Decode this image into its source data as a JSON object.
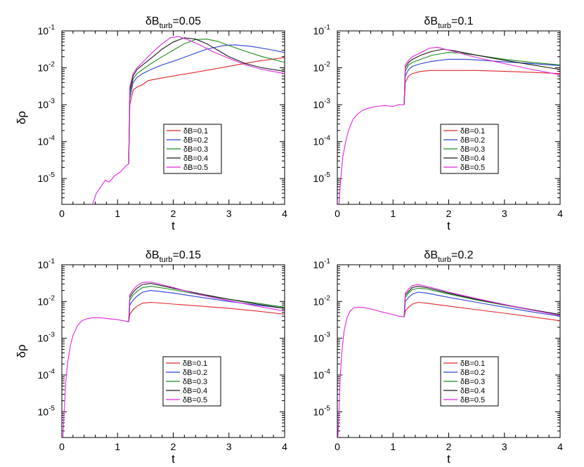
{
  "colors": {
    "dB_0.1": "#e0262b",
    "dB_0.2": "#2a3fd6",
    "dB_0.3": "#1f8a1f",
    "dB_0.4": "#1a1a1a",
    "dB_0.5": "#e026e0"
  },
  "chart_data": [
    {
      "type": "line",
      "title": "δB_turb=0.05",
      "title_main": "δB",
      "title_sub": "turb",
      "title_value": "=0.05",
      "xlabel": "t",
      "ylabel": "δρ",
      "xlim": [
        0,
        4
      ],
      "ylim_log10": [
        -5.7,
        -1
      ],
      "yscale": "log",
      "x_ticks": [
        "0",
        "1",
        "2",
        "3",
        "4"
      ],
      "y_ticks": [
        {
          "base": "10",
          "exp": "-1"
        },
        {
          "base": "10",
          "exp": "-2"
        },
        {
          "base": "10",
          "exp": "-3"
        },
        {
          "base": "10",
          "exp": "-4"
        },
        {
          "base": "10",
          "exp": "-5"
        }
      ],
      "legend": [
        "δB=0.1",
        "δB=0.2",
        "δB=0.3",
        "δB=0.4",
        "δB=0.5"
      ],
      "common": {
        "x": [
          0.55,
          0.62,
          0.7,
          0.78,
          0.85,
          0.95,
          1.05,
          1.15,
          1.2
        ],
        "y": [
          2e-06,
          4e-06,
          6e-06,
          9e-06,
          8e-06,
          1.2e-05,
          1.5e-05,
          2.2e-05,
          2.5e-05
        ]
      },
      "series": [
        {
          "name": "δB=0.1",
          "x": [
            1.2,
            1.22,
            1.28,
            1.35,
            1.45,
            1.55,
            1.7,
            2.0,
            2.5,
            3.0,
            3.5,
            4.0
          ],
          "y": [
            2.5e-05,
            0.001,
            0.0025,
            0.003,
            0.0035,
            0.0045,
            0.005,
            0.006,
            0.008,
            0.011,
            0.015,
            0.019
          ]
        },
        {
          "name": "δB=0.2",
          "x": [
            1.2,
            1.22,
            1.28,
            1.35,
            1.45,
            1.6,
            1.8,
            2.0,
            2.3,
            2.6,
            2.9,
            3.1,
            3.4,
            3.7,
            4.0
          ],
          "y": [
            2.5e-05,
            0.0015,
            0.004,
            0.0055,
            0.007,
            0.009,
            0.012,
            0.015,
            0.022,
            0.032,
            0.04,
            0.042,
            0.038,
            0.032,
            0.026
          ]
        },
        {
          "name": "δB=0.3",
          "x": [
            1.2,
            1.22,
            1.28,
            1.35,
            1.45,
            1.6,
            1.8,
            2.0,
            2.2,
            2.4,
            2.6,
            2.8,
            3.0,
            3.3,
            3.6,
            4.0
          ],
          "y": [
            2.5e-05,
            0.002,
            0.005,
            0.007,
            0.009,
            0.013,
            0.02,
            0.03,
            0.045,
            0.058,
            0.06,
            0.052,
            0.04,
            0.028,
            0.02,
            0.014
          ]
        },
        {
          "name": "δB=0.4",
          "x": [
            1.2,
            1.22,
            1.28,
            1.35,
            1.45,
            1.6,
            1.8,
            2.0,
            2.2,
            2.4,
            2.6,
            2.8,
            3.0,
            3.3,
            3.6,
            4.0
          ],
          "y": [
            2.5e-05,
            0.0025,
            0.006,
            0.009,
            0.012,
            0.018,
            0.032,
            0.05,
            0.065,
            0.06,
            0.045,
            0.03,
            0.02,
            0.013,
            0.01,
            0.008
          ]
        },
        {
          "name": "δB=0.5",
          "x": [
            1.2,
            1.22,
            1.28,
            1.35,
            1.45,
            1.6,
            1.8,
            1.95,
            2.1,
            2.3,
            2.5,
            2.7,
            3.0,
            3.3,
            3.6,
            4.0
          ],
          "y": [
            2.5e-05,
            0.003,
            0.007,
            0.01,
            0.014,
            0.024,
            0.045,
            0.065,
            0.07,
            0.055,
            0.04,
            0.028,
            0.018,
            0.012,
            0.009,
            0.007
          ]
        }
      ]
    },
    {
      "type": "line",
      "title": "δB_turb=0.1",
      "title_main": "δB",
      "title_sub": "turb",
      "title_value": "=0.1",
      "xlabel": "t",
      "ylabel": "",
      "xlim": [
        0,
        4
      ],
      "ylim_log10": [
        -5.7,
        -1
      ],
      "yscale": "log",
      "x_ticks": [
        "0",
        "1",
        "2",
        "3",
        "4"
      ],
      "y_ticks": [
        {
          "base": "10",
          "exp": "-1"
        },
        {
          "base": "10",
          "exp": "-2"
        },
        {
          "base": "10",
          "exp": "-3"
        },
        {
          "base": "10",
          "exp": "-4"
        },
        {
          "base": "10",
          "exp": "-5"
        }
      ],
      "legend": [
        "δB=0.1",
        "δB=0.2",
        "δB=0.3",
        "δB=0.4",
        "δB=0.5"
      ],
      "common": {
        "x": [
          0.03,
          0.06,
          0.1,
          0.15,
          0.2,
          0.28,
          0.36,
          0.45,
          0.55,
          0.7,
          0.85,
          1.0,
          1.1,
          1.2
        ],
        "y": [
          2e-06,
          1e-05,
          4e-05,
          0.0001,
          0.0002,
          0.0004,
          0.00055,
          0.0007,
          0.0008,
          0.0009,
          0.00095,
          0.0009,
          0.001,
          0.001
        ]
      },
      "series": [
        {
          "name": "δB=0.1",
          "x": [
            1.2,
            1.22,
            1.28,
            1.35,
            1.5,
            1.7,
            2.0,
            2.5,
            3.0,
            3.5,
            4.0
          ],
          "y": [
            0.001,
            0.004,
            0.006,
            0.007,
            0.008,
            0.0085,
            0.0085,
            0.0085,
            0.008,
            0.0075,
            0.007
          ]
        },
        {
          "name": "δB=0.2",
          "x": [
            1.2,
            1.22,
            1.28,
            1.35,
            1.5,
            1.7,
            2.0,
            2.3,
            2.6,
            3.0,
            3.5,
            4.0
          ],
          "y": [
            0.001,
            0.006,
            0.009,
            0.011,
            0.013,
            0.015,
            0.017,
            0.017,
            0.016,
            0.0145,
            0.013,
            0.0115
          ]
        },
        {
          "name": "δB=0.3",
          "x": [
            1.2,
            1.22,
            1.28,
            1.35,
            1.5,
            1.7,
            2.0,
            2.2,
            2.5,
            3.0,
            3.5,
            4.0
          ],
          "y": [
            0.001,
            0.008,
            0.012,
            0.014,
            0.017,
            0.022,
            0.026,
            0.025,
            0.022,
            0.017,
            0.014,
            0.012
          ]
        },
        {
          "name": "δB=0.4",
          "x": [
            1.2,
            1.22,
            1.28,
            1.35,
            1.5,
            1.7,
            1.9,
            2.1,
            2.5,
            3.0,
            3.5,
            4.0
          ],
          "y": [
            0.001,
            0.01,
            0.014,
            0.017,
            0.022,
            0.028,
            0.032,
            0.029,
            0.022,
            0.016,
            0.012,
            0.009
          ]
        },
        {
          "name": "δB=0.5",
          "x": [
            1.2,
            1.22,
            1.28,
            1.35,
            1.5,
            1.65,
            1.8,
            2.0,
            2.5,
            3.0,
            3.5,
            4.0
          ],
          "y": [
            0.001,
            0.012,
            0.016,
            0.02,
            0.026,
            0.034,
            0.036,
            0.03,
            0.019,
            0.013,
            0.009,
            0.0065
          ]
        }
      ]
    },
    {
      "type": "line",
      "title": "δB_turb=0.15",
      "title_main": "δB",
      "title_sub": "turb",
      "title_value": "=0.15",
      "xlabel": "t",
      "ylabel": "δρ",
      "xlim": [
        0,
        4
      ],
      "ylim_log10": [
        -5.7,
        -1
      ],
      "yscale": "log",
      "x_ticks": [
        "0",
        "1",
        "2",
        "3",
        "4"
      ],
      "y_ticks": [
        {
          "base": "10",
          "exp": "-1"
        },
        {
          "base": "10",
          "exp": "-2"
        },
        {
          "base": "10",
          "exp": "-3"
        },
        {
          "base": "10",
          "exp": "-4"
        },
        {
          "base": "10",
          "exp": "-5"
        }
      ],
      "legend": [
        "δB=0.1",
        "δB=0.2",
        "δB=0.3",
        "δB=0.4",
        "δB=0.5"
      ],
      "common": {
        "x": [
          0.02,
          0.04,
          0.07,
          0.1,
          0.15,
          0.2,
          0.28,
          0.36,
          0.45,
          0.55,
          0.7,
          0.85,
          1.0,
          1.1,
          1.2
        ],
        "y": [
          2e-06,
          1e-05,
          6e-05,
          0.0002,
          0.0006,
          0.0012,
          0.0022,
          0.003,
          0.0034,
          0.0036,
          0.0036,
          0.0034,
          0.0032,
          0.003,
          0.0028
        ]
      },
      "series": [
        {
          "name": "δB=0.1",
          "x": [
            1.2,
            1.22,
            1.28,
            1.35,
            1.45,
            1.6,
            2.0,
            2.5,
            3.0,
            3.5,
            4.0
          ],
          "y": [
            0.0028,
            0.0045,
            0.006,
            0.0075,
            0.009,
            0.0095,
            0.0085,
            0.0075,
            0.0065,
            0.0055,
            0.0045
          ]
        },
        {
          "name": "δB=0.2",
          "x": [
            1.2,
            1.22,
            1.28,
            1.35,
            1.45,
            1.6,
            2.0,
            2.5,
            3.0,
            3.5,
            4.0
          ],
          "y": [
            0.0028,
            0.008,
            0.011,
            0.014,
            0.018,
            0.02,
            0.017,
            0.013,
            0.01,
            0.008,
            0.0065
          ]
        },
        {
          "name": "δB=0.3",
          "x": [
            1.2,
            1.22,
            1.28,
            1.35,
            1.45,
            1.6,
            2.0,
            2.5,
            3.0,
            3.5,
            4.0
          ],
          "y": [
            0.0028,
            0.011,
            0.015,
            0.019,
            0.024,
            0.026,
            0.021,
            0.015,
            0.0115,
            0.009,
            0.007
          ]
        },
        {
          "name": "δB=0.4",
          "x": [
            1.2,
            1.22,
            1.28,
            1.35,
            1.45,
            1.6,
            2.0,
            2.5,
            3.0,
            3.5,
            4.0
          ],
          "y": [
            0.0028,
            0.013,
            0.018,
            0.023,
            0.029,
            0.031,
            0.023,
            0.016,
            0.0115,
            0.0085,
            0.0065
          ]
        },
        {
          "name": "δB=0.5",
          "x": [
            1.2,
            1.22,
            1.28,
            1.35,
            1.45,
            1.6,
            2.0,
            2.5,
            3.0,
            3.5,
            4.0
          ],
          "y": [
            0.0028,
            0.015,
            0.021,
            0.027,
            0.033,
            0.034,
            0.024,
            0.015,
            0.0105,
            0.0075,
            0.0055
          ]
        }
      ]
    },
    {
      "type": "line",
      "title": "δB_turb=0.2",
      "title_main": "δB",
      "title_sub": "turb",
      "title_value": "=0.2",
      "xlabel": "t",
      "ylabel": "",
      "xlim": [
        0,
        4
      ],
      "ylim_log10": [
        -5.7,
        -1
      ],
      "yscale": "log",
      "x_ticks": [
        "0",
        "1",
        "2",
        "3",
        "4"
      ],
      "y_ticks": [
        {
          "base": "10",
          "exp": "-1"
        },
        {
          "base": "10",
          "exp": "-2"
        },
        {
          "base": "10",
          "exp": "-3"
        },
        {
          "base": "10",
          "exp": "-4"
        },
        {
          "base": "10",
          "exp": "-5"
        }
      ],
      "legend": [
        "δB=0.1",
        "δB=0.2",
        "δB=0.3",
        "δB=0.4",
        "δB=0.5"
      ],
      "common": {
        "x": [
          0.01,
          0.03,
          0.05,
          0.08,
          0.12,
          0.17,
          0.23,
          0.3,
          0.4,
          0.5,
          0.65,
          0.8,
          1.0,
          1.1,
          1.2
        ],
        "y": [
          2e-06,
          1e-05,
          8e-05,
          0.0004,
          0.0015,
          0.0035,
          0.0055,
          0.0068,
          0.007,
          0.0068,
          0.006,
          0.0052,
          0.0044,
          0.004,
          0.0038
        ]
      },
      "series": [
        {
          "name": "δB=0.1",
          "x": [
            1.2,
            1.22,
            1.28,
            1.35,
            1.45,
            1.6,
            2.0,
            2.5,
            3.0,
            3.5,
            4.0
          ],
          "y": [
            0.0038,
            0.0055,
            0.007,
            0.0085,
            0.0095,
            0.009,
            0.0075,
            0.006,
            0.0048,
            0.0038,
            0.003
          ]
        },
        {
          "name": "δB=0.2",
          "x": [
            1.2,
            1.22,
            1.28,
            1.35,
            1.45,
            1.6,
            2.0,
            2.5,
            3.0,
            3.5,
            4.0
          ],
          "y": [
            0.0038,
            0.01,
            0.013,
            0.016,
            0.018,
            0.017,
            0.013,
            0.0095,
            0.007,
            0.0052,
            0.004
          ]
        },
        {
          "name": "δB=0.3",
          "x": [
            1.2,
            1.22,
            1.28,
            1.35,
            1.45,
            1.6,
            2.0,
            2.5,
            3.0,
            3.5,
            4.0
          ],
          "y": [
            0.0038,
            0.013,
            0.017,
            0.021,
            0.023,
            0.022,
            0.016,
            0.011,
            0.008,
            0.0058,
            0.0045
          ]
        },
        {
          "name": "δB=0.4",
          "x": [
            1.2,
            1.22,
            1.28,
            1.35,
            1.45,
            1.6,
            2.0,
            2.5,
            3.0,
            3.5,
            4.0
          ],
          "y": [
            0.0038,
            0.015,
            0.019,
            0.024,
            0.026,
            0.024,
            0.017,
            0.0115,
            0.0082,
            0.006,
            0.0044
          ]
        },
        {
          "name": "δB=0.5",
          "x": [
            1.2,
            1.22,
            1.28,
            1.35,
            1.45,
            1.6,
            2.0,
            2.5,
            3.0,
            3.5,
            4.0
          ],
          "y": [
            0.0038,
            0.017,
            0.022,
            0.027,
            0.029,
            0.026,
            0.018,
            0.012,
            0.0083,
            0.0058,
            0.0042
          ]
        }
      ]
    }
  ]
}
